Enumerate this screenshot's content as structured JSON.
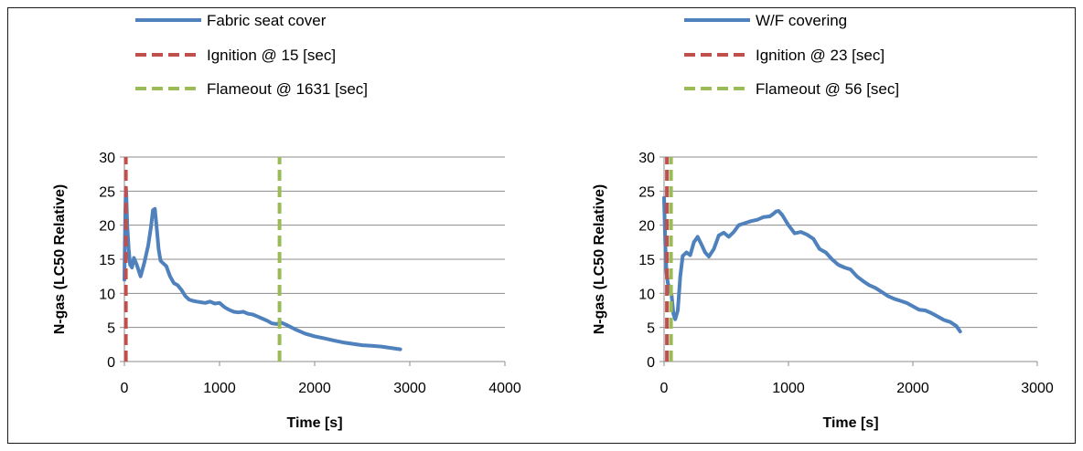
{
  "colors": {
    "series": "#4f81bd",
    "ignition": "#c0504d",
    "flameout": "#9bbb59",
    "grid": "#8c8c8c",
    "axis": "#8c8c8c"
  },
  "chart_data": [
    {
      "type": "line",
      "xlabel": "Time [s]",
      "ylabel": "N-gas (LC50 Relative)",
      "xlim": [
        0,
        4000
      ],
      "ylim": [
        0,
        30
      ],
      "xticks": [
        "0",
        "1000",
        "2000",
        "3000",
        "4000"
      ],
      "yticks": [
        "0",
        "5",
        "10",
        "15",
        "20",
        "25",
        "30"
      ],
      "grid": true,
      "legend_position": "top",
      "series": [
        {
          "name": "Fabric seat cover",
          "x": [
            0,
            10,
            15,
            20,
            30,
            45,
            60,
            80,
            100,
            130,
            170,
            210,
            250,
            280,
            300,
            320,
            340,
            360,
            380,
            400,
            440,
            480,
            520,
            560,
            600,
            640,
            680,
            720,
            760,
            800,
            850,
            900,
            950,
            1000,
            1050,
            1100,
            1150,
            1200,
            1250,
            1300,
            1350,
            1400,
            1450,
            1500,
            1550,
            1600,
            1650,
            1700,
            1800,
            1900,
            2000,
            2100,
            2200,
            2300,
            2400,
            2500,
            2600,
            2700,
            2800,
            2900
          ],
          "y": [
            12,
            22,
            25.5,
            24.5,
            20,
            16.5,
            14.2,
            13.8,
            15.2,
            14.2,
            12.5,
            14.5,
            17,
            19.8,
            22.2,
            22.4,
            19.5,
            16.5,
            14.8,
            14.5,
            14,
            12.5,
            11.5,
            11.2,
            10.5,
            9.6,
            9.1,
            8.9,
            8.8,
            8.7,
            8.6,
            8.8,
            8.5,
            8.6,
            8,
            7.6,
            7.3,
            7.2,
            7.3,
            7.0,
            6.9,
            6.6,
            6.3,
            6.0,
            5.6,
            5.5,
            5.7,
            5.4,
            4.7,
            4.1,
            3.7,
            3.4,
            3.1,
            2.8,
            2.6,
            2.4,
            2.3,
            2.2,
            2.0,
            1.8
          ]
        },
        {
          "name": "Ignition @ 15 [sec]",
          "x": [
            15,
            15
          ],
          "y": [
            0,
            30
          ]
        },
        {
          "name": "Flameout @ 1631 [sec]",
          "x": [
            1631,
            1631
          ],
          "y": [
            0,
            30
          ]
        }
      ]
    },
    {
      "type": "line",
      "xlabel": "Time [s]",
      "ylabel": "N-gas (LC50 Relative)",
      "xlim": [
        0,
        3000
      ],
      "ylim": [
        0,
        30
      ],
      "xticks": [
        "0",
        "1000",
        "2000",
        "3000"
      ],
      "yticks": [
        "0",
        "5",
        "10",
        "15",
        "20",
        "25",
        "30"
      ],
      "grid": true,
      "legend_position": "top",
      "series": [
        {
          "name": "W/F covering",
          "x": [
            0,
            10,
            20,
            30,
            40,
            50,
            60,
            75,
            90,
            110,
            130,
            150,
            180,
            210,
            240,
            270,
            300,
            330,
            360,
            400,
            440,
            480,
            520,
            560,
            600,
            650,
            700,
            750,
            800,
            850,
            880,
            900,
            920,
            950,
            1000,
            1050,
            1100,
            1150,
            1200,
            1250,
            1300,
            1350,
            1400,
            1450,
            1500,
            1550,
            1600,
            1650,
            1700,
            1750,
            1800,
            1850,
            1900,
            1950,
            2000,
            2050,
            2100,
            2150,
            2200,
            2250,
            2300,
            2350,
            2380
          ],
          "y": [
            24,
            17,
            13,
            11.5,
            11,
            10,
            9.8,
            7,
            6.2,
            7.5,
            12.5,
            15.5,
            16,
            15.6,
            17.5,
            18.3,
            17.2,
            16,
            15.4,
            16.5,
            18.5,
            18.9,
            18.3,
            19,
            20,
            20.3,
            20.6,
            20.8,
            21.2,
            21.3,
            21.7,
            22,
            22.1,
            21.5,
            20,
            18.8,
            19,
            18.6,
            18,
            16.5,
            16,
            15,
            14.2,
            13.8,
            13.5,
            12.5,
            11.8,
            11.2,
            10.8,
            10.2,
            9.6,
            9.2,
            8.9,
            8.6,
            8.1,
            7.6,
            7.5,
            7.1,
            6.6,
            6.1,
            5.8,
            5.2,
            4.4
          ]
        },
        {
          "name": "Ignition @ 23 [sec]",
          "x": [
            23,
            23
          ],
          "y": [
            0,
            30
          ]
        },
        {
          "name": "Flameout @ 56 [sec]",
          "x": [
            56,
            56
          ],
          "y": [
            0,
            30
          ]
        }
      ]
    }
  ]
}
